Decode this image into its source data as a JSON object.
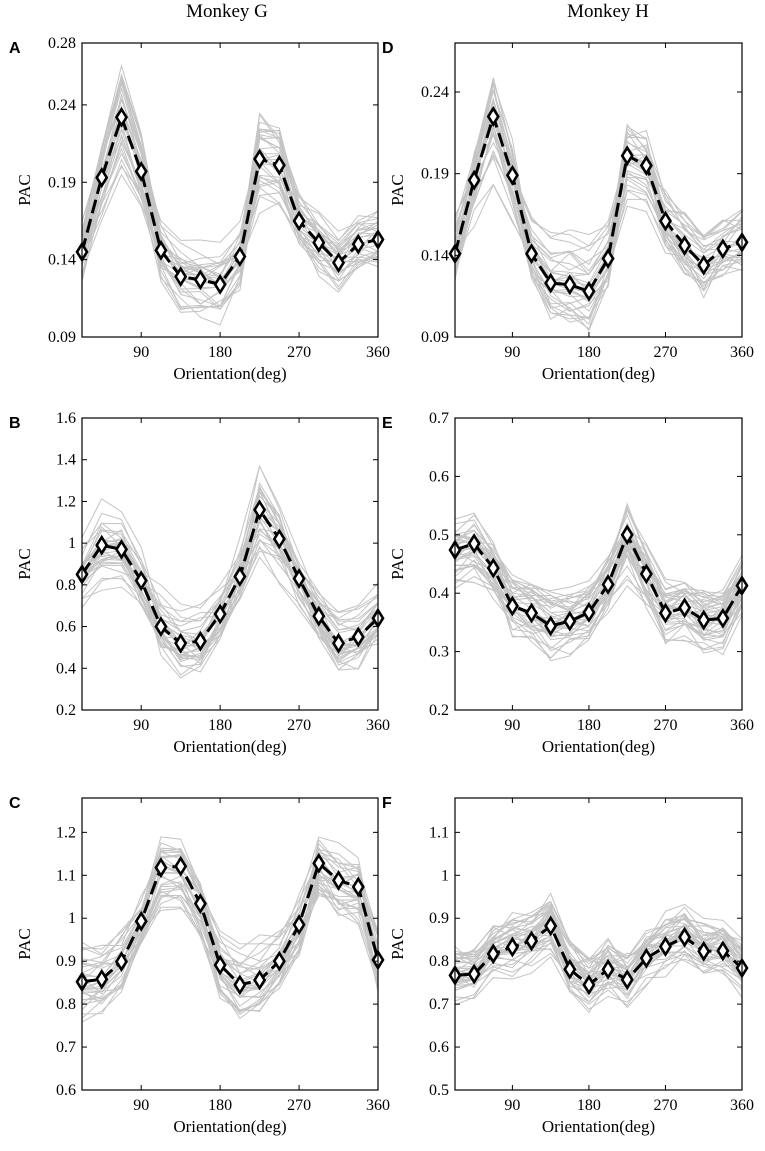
{
  "figure": {
    "column_titles": [
      "Monkey G",
      "Monkey H"
    ]
  },
  "chart_data": [
    {
      "panel": "A",
      "type": "line",
      "monkey": "Monkey G",
      "xlabel": "Orientation(deg)",
      "ylabel": "PAC",
      "xlim": [
        22.5,
        360
      ],
      "ylim": [
        0.09,
        0.28
      ],
      "xticks": [
        90,
        180,
        270,
        360
      ],
      "yticks": [
        0.09,
        0.14,
        0.19,
        0.24,
        0.28
      ],
      "yticklabels": [
        "0.09",
        "0.14",
        "0.19",
        "0.24",
        "0.28"
      ],
      "series": [
        {
          "name": "mean",
          "x": [
            22.5,
            45,
            67.5,
            90,
            112.5,
            135,
            157.5,
            180,
            202.5,
            225,
            247.5,
            270,
            292.5,
            315,
            337.5,
            360
          ],
          "values": [
            0.145,
            0.193,
            0.232,
            0.197,
            0.146,
            0.129,
            0.127,
            0.124,
            0.142,
            0.205,
            0.201,
            0.165,
            0.151,
            0.138,
            0.15,
            0.153
          ]
        }
      ],
      "individual_traces": 32
    },
    {
      "panel": "D",
      "type": "line",
      "monkey": "Monkey H",
      "xlabel": "Orientation(deg)",
      "ylabel": "PAC",
      "xlim": [
        22.5,
        360
      ],
      "ylim": [
        0.09,
        0.27
      ],
      "xticks": [
        90,
        180,
        270,
        360
      ],
      "yticks": [
        0.09,
        0.14,
        0.19,
        0.24
      ],
      "yticklabels": [
        "0.09",
        "0.14",
        "0.19",
        "0.24"
      ],
      "series": [
        {
          "name": "mean",
          "x": [
            22.5,
            45,
            67.5,
            90,
            112.5,
            135,
            157.5,
            180,
            202.5,
            225,
            247.5,
            270,
            292.5,
            315,
            337.5,
            360
          ],
          "values": [
            0.141,
            0.186,
            0.225,
            0.189,
            0.141,
            0.123,
            0.122,
            0.118,
            0.138,
            0.201,
            0.195,
            0.161,
            0.146,
            0.134,
            0.144,
            0.148
          ]
        }
      ],
      "individual_traces": 32
    },
    {
      "panel": "B",
      "type": "line",
      "monkey": "Monkey G",
      "xlabel": "Orientation(deg)",
      "ylabel": "PAC",
      "xlim": [
        22.5,
        360
      ],
      "ylim": [
        0.2,
        1.6
      ],
      "xticks": [
        90,
        180,
        270,
        360
      ],
      "yticks": [
        0.2,
        0.4,
        0.6,
        0.8,
        1,
        1.2,
        1.4,
        1.6
      ],
      "yticklabels": [
        "0.2",
        "0.4",
        "0.6",
        "0.8",
        "1",
        "1.2",
        "1.4",
        "1.6"
      ],
      "series": [
        {
          "name": "mean",
          "x": [
            22.5,
            45,
            67.5,
            90,
            112.5,
            135,
            157.5,
            180,
            202.5,
            225,
            247.5,
            270,
            292.5,
            315,
            337.5,
            360
          ],
          "values": [
            0.85,
            0.99,
            0.97,
            0.82,
            0.6,
            0.52,
            0.53,
            0.66,
            0.84,
            1.16,
            1.02,
            0.83,
            0.65,
            0.52,
            0.55,
            0.64
          ]
        }
      ],
      "individual_traces": 32
    },
    {
      "panel": "E",
      "type": "line",
      "monkey": "Monkey H",
      "xlabel": "Orientation(deg)",
      "ylabel": "PAC",
      "xlim": [
        22.5,
        360
      ],
      "ylim": [
        0.2,
        0.7
      ],
      "xticks": [
        90,
        180,
        270,
        360
      ],
      "yticks": [
        0.2,
        0.3,
        0.4,
        0.5,
        0.6,
        0.7
      ],
      "yticklabels": [
        "0.2",
        "0.3",
        "0.4",
        "0.5",
        "0.6",
        "0.7"
      ],
      "series": [
        {
          "name": "mean",
          "x": [
            22.5,
            45,
            67.5,
            90,
            112.5,
            135,
            157.5,
            180,
            202.5,
            225,
            247.5,
            270,
            292.5,
            315,
            337.5,
            360
          ],
          "values": [
            0.474,
            0.485,
            0.443,
            0.378,
            0.366,
            0.344,
            0.352,
            0.367,
            0.415,
            0.5,
            0.433,
            0.366,
            0.375,
            0.354,
            0.357,
            0.413
          ]
        }
      ],
      "individual_traces": 40
    },
    {
      "panel": "C",
      "type": "line",
      "monkey": "Monkey G",
      "xlabel": "Orientation(deg)",
      "ylabel": "PAC",
      "xlim": [
        22.5,
        360
      ],
      "ylim": [
        0.6,
        1.28
      ],
      "xticks": [
        90,
        180,
        270,
        360
      ],
      "yticks": [
        0.6,
        0.7,
        0.8,
        0.9,
        1,
        1.1,
        1.2
      ],
      "yticklabels": [
        "0.6",
        "0.7",
        "0.8",
        "0.9",
        "1",
        "1.1",
        "1.2"
      ],
      "series": [
        {
          "name": "mean",
          "x": [
            22.5,
            45,
            67.5,
            90,
            112.5,
            135,
            157.5,
            180,
            202.5,
            225,
            247.5,
            270,
            292.5,
            315,
            337.5,
            360
          ],
          "values": [
            0.852,
            0.858,
            0.899,
            0.993,
            1.118,
            1.121,
            1.034,
            0.891,
            0.845,
            0.856,
            0.9,
            0.985,
            1.128,
            1.088,
            1.073,
            0.903
          ]
        }
      ],
      "individual_traces": 32
    },
    {
      "panel": "F",
      "type": "line",
      "monkey": "Monkey H",
      "xlabel": "Orientation(deg)",
      "ylabel": "PAC",
      "xlim": [
        22.5,
        360
      ],
      "ylim": [
        0.5,
        1.18
      ],
      "xticks": [
        90,
        180,
        270,
        360
      ],
      "yticks": [
        0.5,
        0.6,
        0.7,
        0.8,
        0.9,
        1,
        1.1
      ],
      "yticklabels": [
        "0.5",
        "0.6",
        "0.7",
        "0.8",
        "0.9",
        "1",
        "1.1"
      ],
      "series": [
        {
          "name": "mean",
          "x": [
            22.5,
            45,
            67.5,
            90,
            112.5,
            135,
            157.5,
            180,
            202.5,
            225,
            247.5,
            270,
            292.5,
            315,
            337.5,
            360
          ],
          "values": [
            0.767,
            0.77,
            0.817,
            0.833,
            0.847,
            0.882,
            0.781,
            0.745,
            0.781,
            0.757,
            0.807,
            0.834,
            0.856,
            0.823,
            0.824,
            0.784
          ]
        }
      ],
      "individual_traces": 40
    }
  ]
}
